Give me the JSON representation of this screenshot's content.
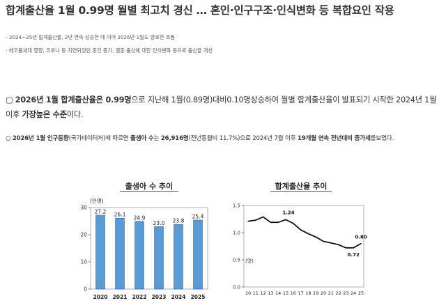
{
  "title": "합계출산율 1월 0.99명 월별 최고치 경신 … 혼인·인구구조·인식변화 등 복합요인 작용",
  "bullets": [
    "- 2024~25년 합계출산율, 2년 연속 상승한 데 이어 2026년 1월도 양호한 흐름",
    "- 에코붐세대 영향, 코로나 등 지연되었던 혼인 증가, 결혼·출산에 대한 인식변화 등으로 출산율 개선"
  ],
  "para1": {
    "marker": "▢",
    "b1": "2026년 1월 합계출산율은 0.99명",
    "t1": "으로 지난해 1월(0.89명)대비0.10명상승하여 월별 합계출산율이 발표되기 시작한 2024년 1월 이후 ",
    "b2": "가장높은 수준",
    "t2": "이다."
  },
  "para2": {
    "marker": "○",
    "b1": "2026년 1월 인구동향",
    "t1": "(국가데이터처)에 따르면 ",
    "b2": "출생아 수",
    "t2": "는 ",
    "b3": "26,916명",
    "t3": "(전년동월비 11.7%)으로 2024년 7월 이후 ",
    "b4": "19개월 연속 전년대비 증가세",
    "t4": "를보였다."
  },
  "chart_data": [
    {
      "type": "bar",
      "title": "출생아 수 추이",
      "unit_label": "(만명)",
      "categories": [
        "2020",
        "2021",
        "2022",
        "2023",
        "2024",
        "2025"
      ],
      "values": [
        27.2,
        26.1,
        24.9,
        23.0,
        23.8,
        25.4
      ],
      "value_labels": [
        "27.2",
        "26.1",
        "24.9",
        "23.0",
        "23.8",
        "25.4"
      ],
      "y_ticks": [
        "0",
        "10",
        "20",
        "30"
      ],
      "ylim": [
        0,
        30
      ],
      "bar_color": "#5b9bd5"
    },
    {
      "type": "line",
      "title": "합계출산율 추이",
      "unit_label": "(명)",
      "x": [
        "10",
        "11",
        "12",
        "13",
        "14",
        "15",
        "16",
        "17",
        "18",
        "19",
        "20",
        "21",
        "22",
        "23",
        "24",
        "25"
      ],
      "values": [
        1.21,
        1.23,
        1.29,
        1.19,
        1.19,
        1.24,
        1.17,
        1.05,
        0.98,
        0.92,
        0.84,
        0.81,
        0.78,
        0.72,
        0.72,
        0.8
      ],
      "y_ticks": [
        "0.0",
        "0.5",
        "1.0",
        "1.5"
      ],
      "ylim": [
        0,
        1.5
      ],
      "annotations": [
        {
          "index": 5,
          "label": "1.24"
        },
        {
          "index": 14,
          "label": "0.72"
        },
        {
          "index": 15,
          "label": "0.80"
        }
      ]
    }
  ]
}
